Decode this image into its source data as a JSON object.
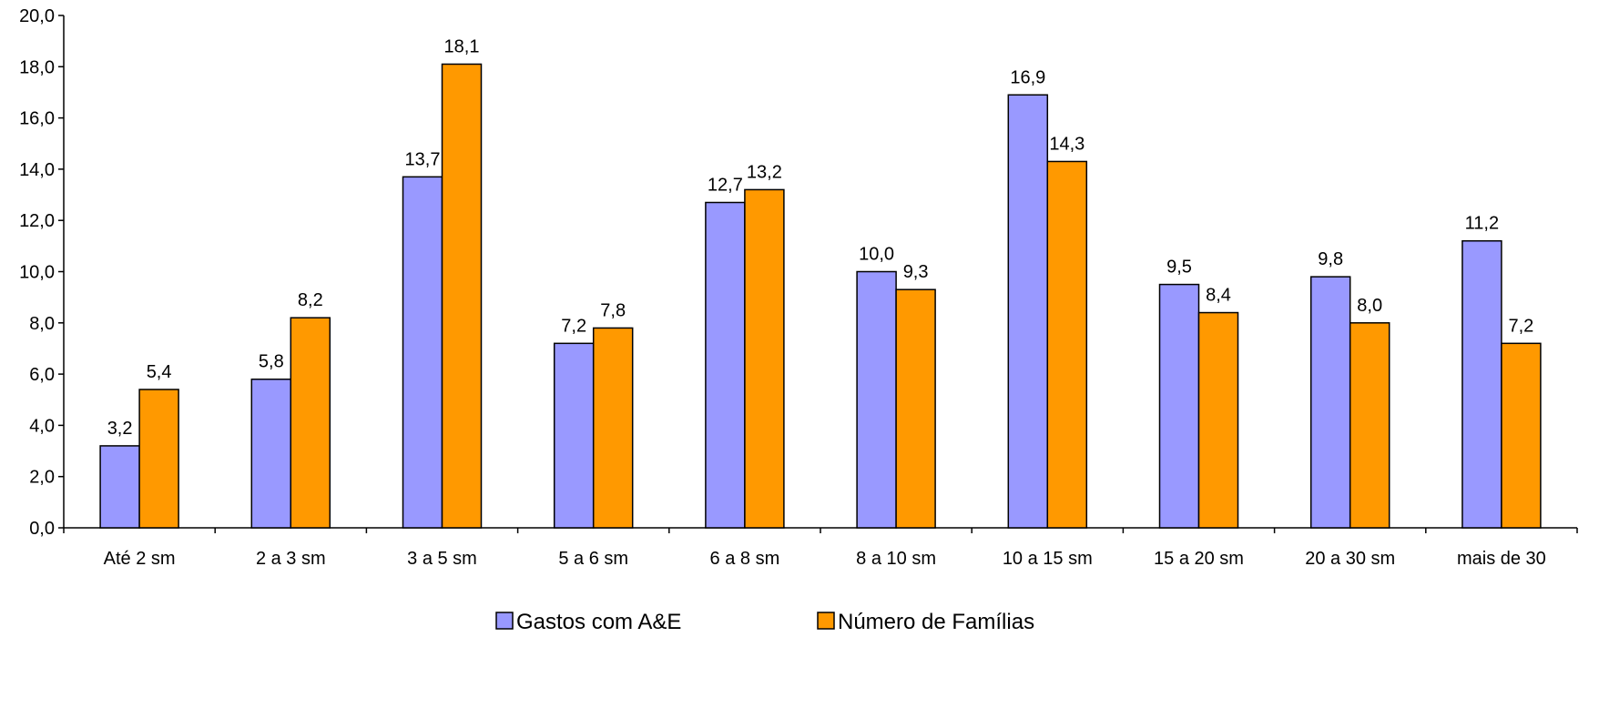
{
  "chart_data": {
    "type": "bar",
    "categories": [
      "Até 2 sm",
      "2 a 3 sm",
      "3 a 5 sm",
      "5 a 6 sm",
      "6 a 8 sm",
      "8 a 10 sm",
      "10 a 15 sm",
      "15 a 20 sm",
      "20 a 30 sm",
      "mais de 30"
    ],
    "series": [
      {
        "name": "Gastos com A&E",
        "color": "#9999ff",
        "values": [
          3.2,
          5.8,
          13.7,
          7.2,
          12.7,
          10.0,
          16.9,
          9.5,
          9.8,
          11.2
        ],
        "labels": [
          "3,2",
          "5,8",
          "13,7",
          "7,2",
          "12,7",
          "10,0",
          "16,9",
          "9,5",
          "9,8",
          "11,2"
        ]
      },
      {
        "name": "Número de Famílias",
        "color": "#ff9900",
        "values": [
          5.4,
          8.2,
          18.1,
          7.8,
          13.2,
          9.3,
          14.3,
          8.4,
          8.0,
          7.2
        ],
        "labels": [
          "5,4",
          "8,2",
          "18,1",
          "7,8",
          "13,2",
          "9,3",
          "14,3",
          "8,4",
          "8,0",
          "7,2"
        ]
      }
    ],
    "ylim": [
      0,
      20
    ],
    "yticks": [
      "0,0",
      "2,0",
      "4,0",
      "6,0",
      "8,0",
      "10,0",
      "12,0",
      "14,0",
      "16,0",
      "18,0",
      "20,0"
    ],
    "grid": false,
    "legend": "bottom",
    "title": "",
    "xlabel": "",
    "ylabel": ""
  }
}
